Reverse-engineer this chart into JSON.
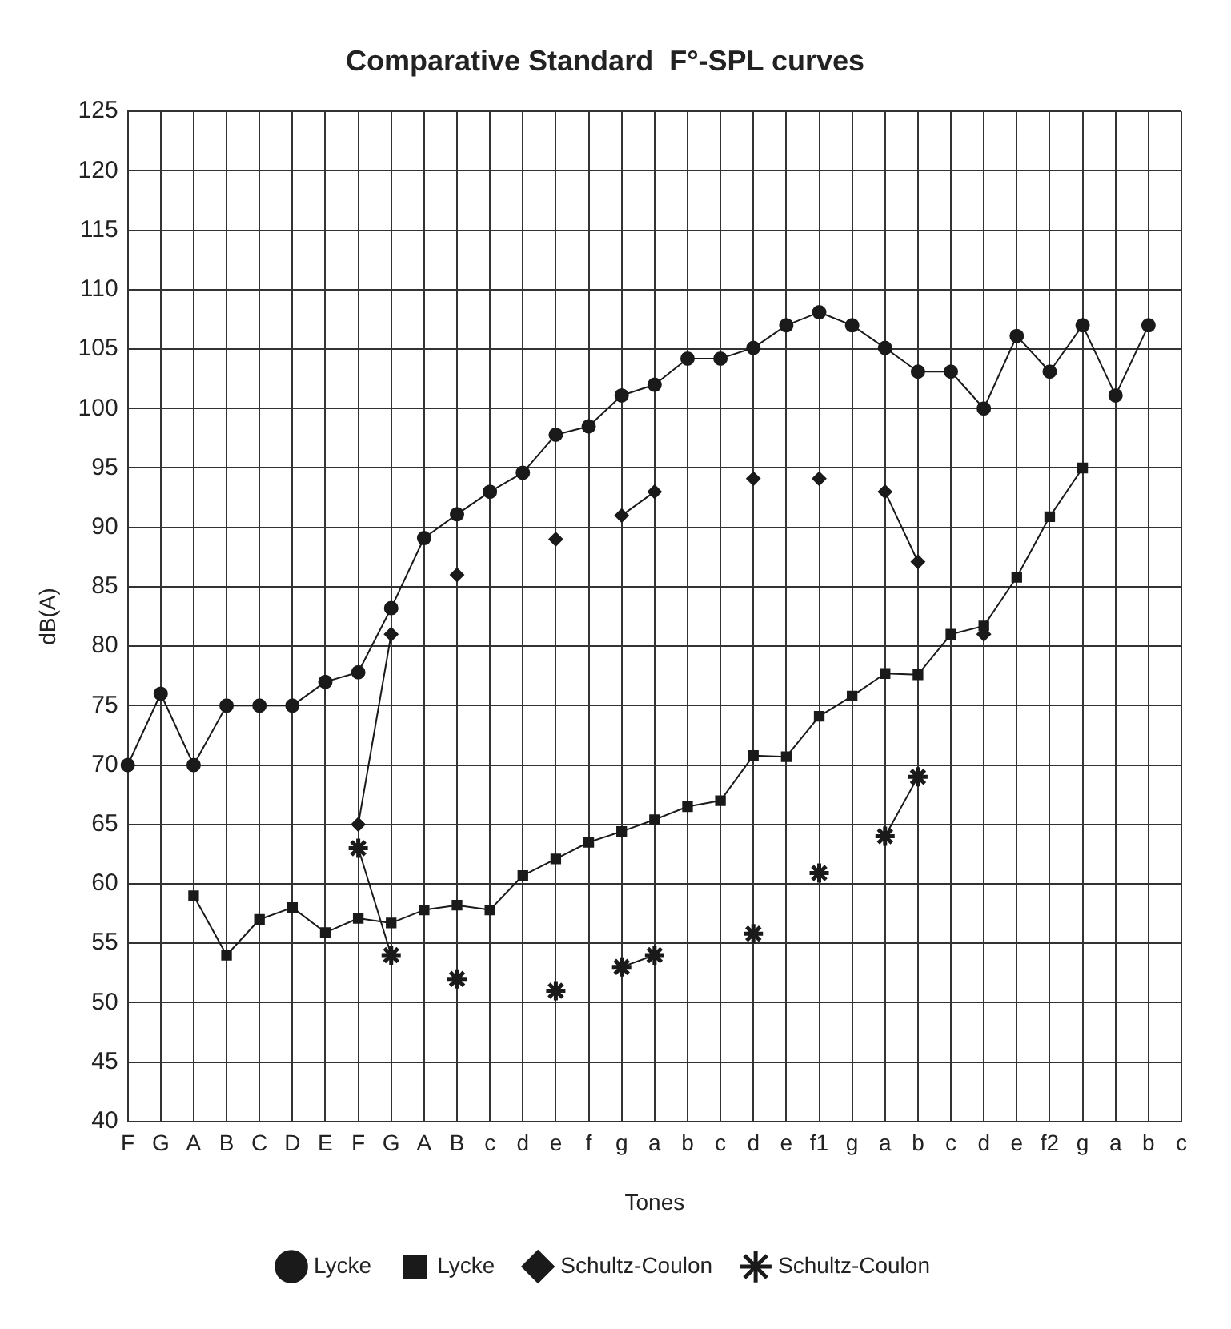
{
  "chart_data": {
    "type": "line",
    "title": "Comparative Standard  F°-SPL curves",
    "xlabel": "Tones",
    "ylabel": "dB(A)",
    "categories": [
      "F",
      "G",
      "A",
      "B",
      "C",
      "D",
      "E",
      "F",
      "G",
      "A",
      "B",
      "c",
      "d",
      "e",
      "f",
      "g",
      "a",
      "b",
      "c",
      "d",
      "e",
      "f1",
      "g",
      "a",
      "b",
      "c",
      "d",
      "e",
      "f2",
      "g",
      "a",
      "b",
      "c"
    ],
    "series": [
      {
        "name": "Lycke",
        "color": "#1a1a1a",
        "marker": "circle",
        "values": [
          70,
          76,
          70,
          75,
          75,
          75,
          77,
          77.8,
          83.2,
          89.1,
          91.1,
          93,
          94.6,
          97.8,
          98.5,
          101.1,
          102,
          104.2,
          104.2,
          105.1,
          107,
          108.1,
          107,
          105.1,
          103.1,
          103.1,
          100,
          106.1,
          103.1,
          107,
          101.1,
          107,
          null
        ]
      },
      {
        "name": "Lycke",
        "color": "#1a1a1a",
        "marker": "square",
        "values": [
          null,
          null,
          59,
          54,
          57,
          58,
          55.9,
          57.1,
          56.7,
          57.8,
          58.2,
          57.8,
          60.7,
          62.1,
          63.5,
          64.4,
          65.4,
          66.5,
          67,
          70.8,
          70.7,
          74.1,
          75.8,
          77.7,
          77.6,
          81,
          81.7,
          85.8,
          90.9,
          95,
          null,
          null,
          null
        ]
      },
      {
        "name": "Schultz-Coulon",
        "color": "#1a1a1a",
        "marker": "diamond",
        "values": [
          null,
          null,
          null,
          null,
          null,
          null,
          null,
          65,
          81,
          null,
          86,
          null,
          null,
          89,
          null,
          91,
          93,
          null,
          null,
          94.1,
          null,
          94.1,
          null,
          93,
          87.1,
          null,
          81,
          null,
          null,
          null,
          null,
          null,
          null
        ]
      },
      {
        "name": "Schultz-Coulon",
        "color": "#1a1a1a",
        "marker": "cross",
        "values": [
          null,
          null,
          null,
          null,
          null,
          null,
          null,
          63,
          54,
          null,
          52,
          null,
          null,
          51,
          null,
          53,
          54,
          null,
          null,
          55.8,
          null,
          60.9,
          null,
          64,
          69,
          null,
          null,
          null,
          null,
          null,
          null,
          null,
          null
        ]
      }
    ],
    "ylim": [
      40,
      125
    ],
    "yticks": [
      40,
      45,
      50,
      55,
      60,
      65,
      70,
      75,
      80,
      85,
      90,
      95,
      100,
      105,
      110,
      115,
      120,
      125
    ],
    "grid": true,
    "legend": "bottom",
    "line_style": "solid"
  }
}
